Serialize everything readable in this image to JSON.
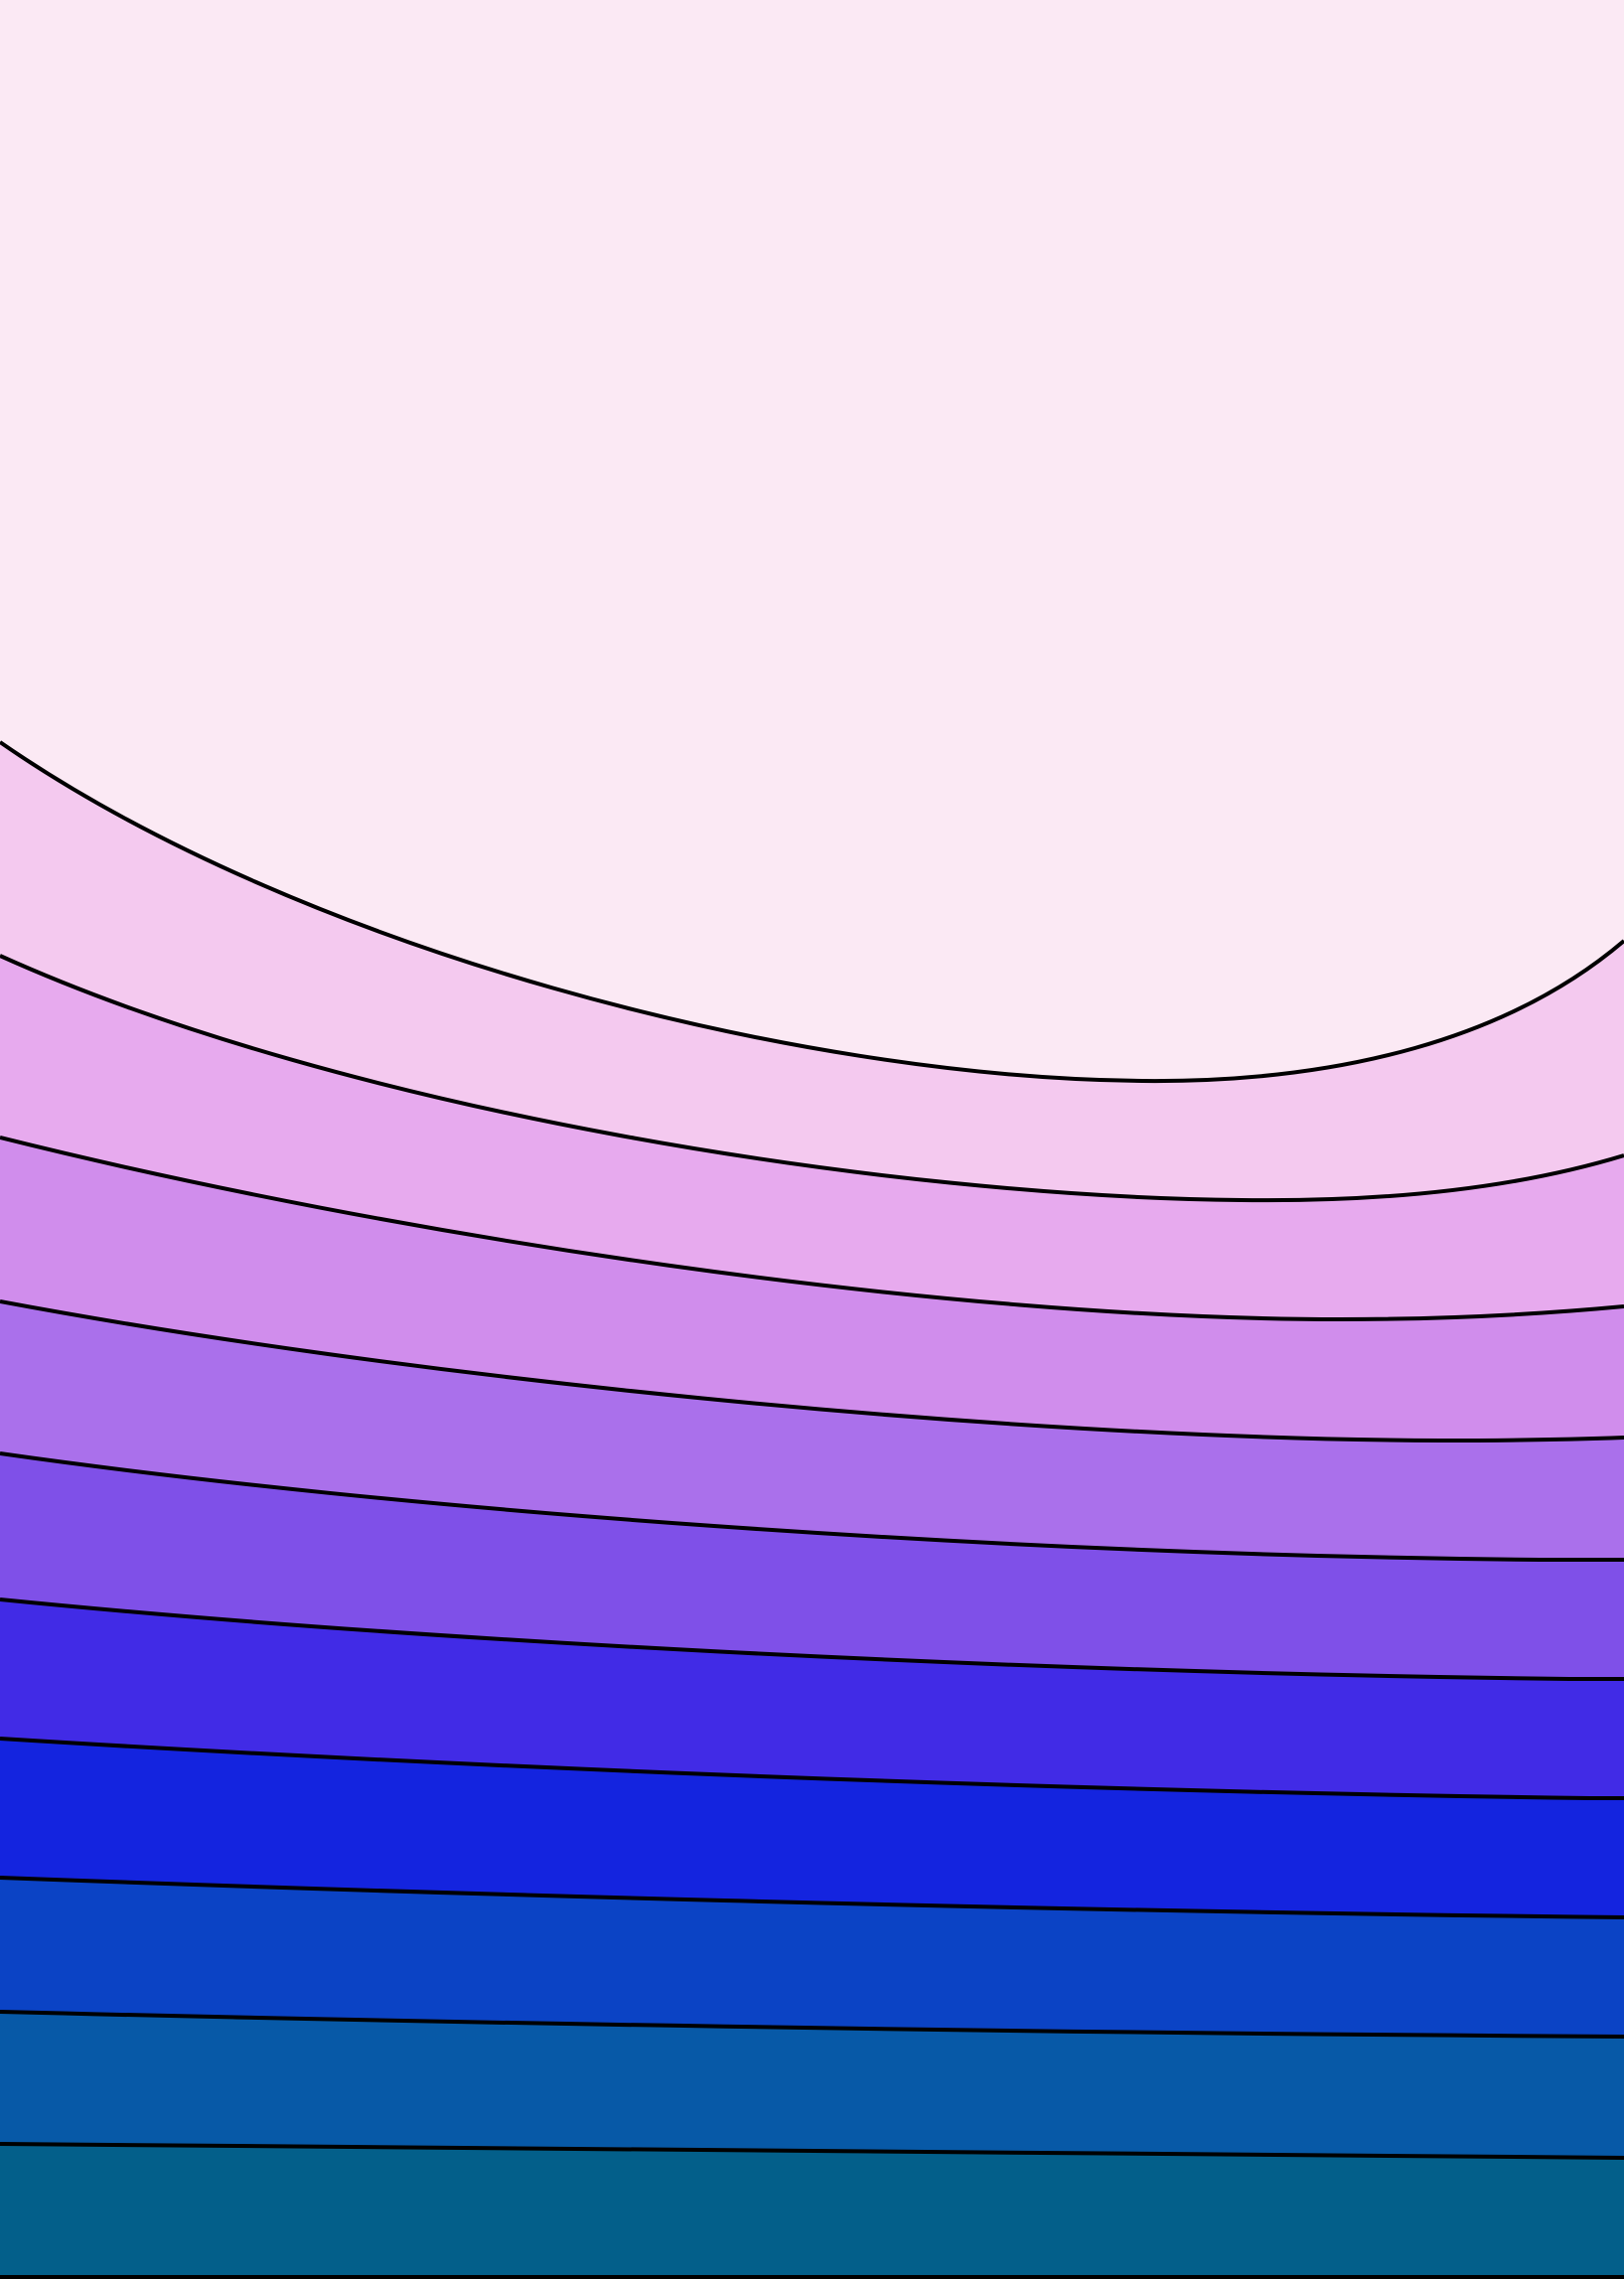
{
  "figure": {
    "kind": "filled-contour-bands",
    "line_color": "#000000",
    "band_colors": [
      "#fbe9f4",
      "#f4c9ef",
      "#e7aaee",
      "#d08dec",
      "#aa70eb",
      "#7f50e8",
      "#412be6",
      "#1424df",
      "#0b43c5",
      "#0759a7",
      "#035f8a"
    ]
  }
}
